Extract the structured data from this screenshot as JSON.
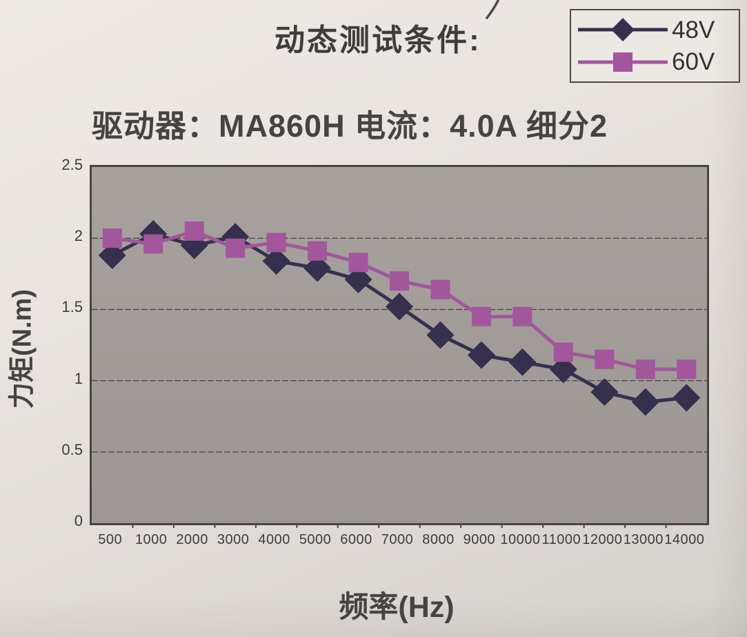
{
  "page": {
    "subtitle": "驱动器：MA860H  电流：4.0A  细分2"
  },
  "chart_data": {
    "type": "line",
    "title": "动态测试条件:",
    "xlabel": "频率(Hz)",
    "ylabel": "力矩(N.m)",
    "categories": [
      500,
      1000,
      2000,
      3000,
      4000,
      5000,
      6000,
      7000,
      8000,
      9000,
      10000,
      11000,
      12000,
      13000,
      14000
    ],
    "series": [
      {
        "name": "48V",
        "marker": "diamond",
        "color": "#34304e",
        "values": [
          1.88,
          2.03,
          1.95,
          2.01,
          1.84,
          1.79,
          1.71,
          1.52,
          1.32,
          1.18,
          1.13,
          1.08,
          0.92,
          0.85,
          0.88
        ]
      },
      {
        "name": "60V",
        "marker": "square",
        "color": "#a2569c",
        "values": [
          2.0,
          1.96,
          2.05,
          1.93,
          1.97,
          1.91,
          1.83,
          1.7,
          1.64,
          1.45,
          1.45,
          1.2,
          1.15,
          1.08,
          1.08
        ]
      }
    ],
    "ylim": [
      0,
      2.5
    ],
    "yticks": [
      0,
      0.5,
      1,
      1.5,
      2,
      2.5
    ],
    "grid": true,
    "grid_color": "#4e4a46",
    "plot_bg": "#a19b98",
    "legend_position": "top-right"
  }
}
